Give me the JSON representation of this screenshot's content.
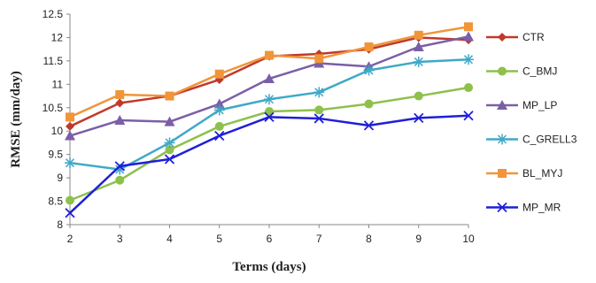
{
  "chart_data": {
    "type": "line",
    "xlabel": "Terms (days)",
    "ylabel": "RMSE (mm/day)",
    "x": [
      2,
      3,
      4,
      5,
      6,
      7,
      8,
      9,
      10
    ],
    "xlim": [
      2,
      10
    ],
    "ylim": [
      8,
      12.5
    ],
    "y_ticks": [
      "8",
      "8.5",
      "9",
      "9.5",
      "10",
      "10.5",
      "11",
      "11.5",
      "12",
      "12.5"
    ],
    "x_ticks": [
      "2",
      "3",
      "4",
      "5",
      "6",
      "7",
      "8",
      "9",
      "10"
    ],
    "grid": false,
    "legend_position": "right",
    "series": [
      {
        "name": "CTR",
        "color": "#c0392b",
        "marker": "diamond",
        "values": [
          10.1,
          10.6,
          10.75,
          11.1,
          11.6,
          11.65,
          11.75,
          12.0,
          11.95
        ]
      },
      {
        "name": "C_BMJ",
        "color": "#8ec04c",
        "marker": "circle",
        "values": [
          8.52,
          8.95,
          9.6,
          10.1,
          10.42,
          10.45,
          10.58,
          10.75,
          10.93
        ]
      },
      {
        "name": "MP_LP",
        "color": "#7b5ea7",
        "marker": "triangle",
        "values": [
          9.9,
          10.23,
          10.2,
          10.58,
          11.12,
          11.45,
          11.38,
          11.8,
          12.02
        ]
      },
      {
        "name": "C_GRELL3",
        "color": "#3fa9c7",
        "marker": "star",
        "values": [
          9.32,
          9.18,
          9.75,
          10.45,
          10.68,
          10.83,
          11.3,
          11.48,
          11.53
        ]
      },
      {
        "name": "BL_MYJ",
        "color": "#f0953a",
        "marker": "square",
        "values": [
          10.3,
          10.78,
          10.75,
          11.22,
          11.62,
          11.55,
          11.8,
          12.05,
          12.23
        ]
      },
      {
        "name": "MP_MR",
        "color": "#1f1fd9",
        "marker": "x",
        "values": [
          8.25,
          9.25,
          9.4,
          9.9,
          10.3,
          10.27,
          10.12,
          10.28,
          10.33
        ]
      }
    ]
  }
}
